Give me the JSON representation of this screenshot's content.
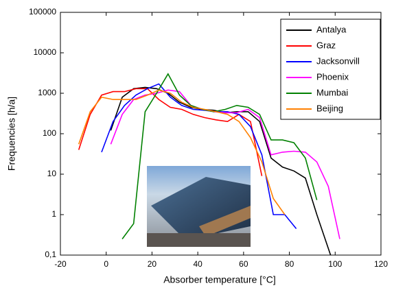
{
  "chart_data": {
    "type": "line",
    "log_y": true,
    "xlabel": "Absorber temperature [°C]",
    "ylabel": "Frequencies [h/a]",
    "xlim": [
      -20,
      120
    ],
    "xticks": [
      -20,
      0,
      20,
      40,
      60,
      80,
      100,
      120
    ],
    "ylim": [
      0.1,
      100000
    ],
    "yticks": [
      {
        "value": 0.1,
        "label": "0,1"
      },
      1,
      10,
      100,
      1000,
      10000,
      100000
    ],
    "legend": "upper right",
    "series": [
      {
        "name": "Antalya",
        "color": "#000000",
        "x": [
          2,
          7,
          12,
          17,
          22,
          27,
          32,
          37,
          42,
          47,
          52,
          57,
          62,
          67,
          72,
          77,
          82,
          87,
          92,
          98
        ],
        "values": [
          120,
          800,
          1300,
          1400,
          1300,
          1000,
          600,
          450,
          400,
          380,
          330,
          350,
          350,
          200,
          25,
          15,
          12,
          8,
          1,
          0.1
        ]
      },
      {
        "name": "Graz",
        "color": "#ff0000",
        "x": [
          -12,
          -7,
          -2,
          3,
          8,
          13,
          18,
          23,
          28,
          33,
          38,
          43,
          48,
          53,
          58,
          63,
          68
        ],
        "values": [
          40,
          300,
          900,
          1100,
          1100,
          1300,
          1300,
          700,
          450,
          400,
          300,
          250,
          220,
          200,
          300,
          200,
          9
        ]
      },
      {
        "name": "Jacksonvill",
        "color": "#0000ff",
        "x": [
          -2,
          3,
          8,
          13,
          18,
          23,
          28,
          33,
          38,
          43,
          48,
          53,
          58,
          63,
          68,
          73,
          78,
          83
        ],
        "values": [
          35,
          200,
          500,
          900,
          1300,
          1700,
          800,
          500,
          400,
          380,
          350,
          350,
          300,
          150,
          30,
          1,
          1,
          0.45
        ]
      },
      {
        "name": "Phoenix",
        "color": "#ff00ff",
        "x": [
          2,
          7,
          12,
          17,
          22,
          27,
          32,
          37,
          42,
          47,
          52,
          57,
          62,
          67,
          72,
          77,
          82,
          87,
          92,
          97,
          102
        ],
        "values": [
          55,
          300,
          700,
          900,
          1000,
          1200,
          1100,
          500,
          400,
          350,
          330,
          330,
          400,
          250,
          30,
          35,
          37,
          35,
          20,
          5,
          0.25
        ]
      },
      {
        "name": "Mumbai",
        "color": "#008000",
        "x": [
          7,
          12,
          17,
          22,
          27,
          32,
          37,
          42,
          47,
          52,
          57,
          62,
          67,
          72,
          77,
          82,
          87,
          92
        ],
        "values": [
          0.25,
          0.6,
          350,
          1000,
          3000,
          900,
          500,
          400,
          350,
          400,
          500,
          450,
          300,
          70,
          70,
          60,
          25,
          2.3
        ]
      },
      {
        "name": "Beijing",
        "color": "#ff8000",
        "x": [
          -12,
          -7,
          -2,
          3,
          8,
          13,
          18,
          23,
          28,
          33,
          38,
          43,
          48,
          53,
          58,
          63,
          68,
          73,
          78
        ],
        "values": [
          55,
          350,
          800,
          700,
          700,
          700,
          900,
          1200,
          1000,
          600,
          450,
          400,
          350,
          300,
          200,
          80,
          20,
          2.5,
          1
        ]
      }
    ]
  }
}
